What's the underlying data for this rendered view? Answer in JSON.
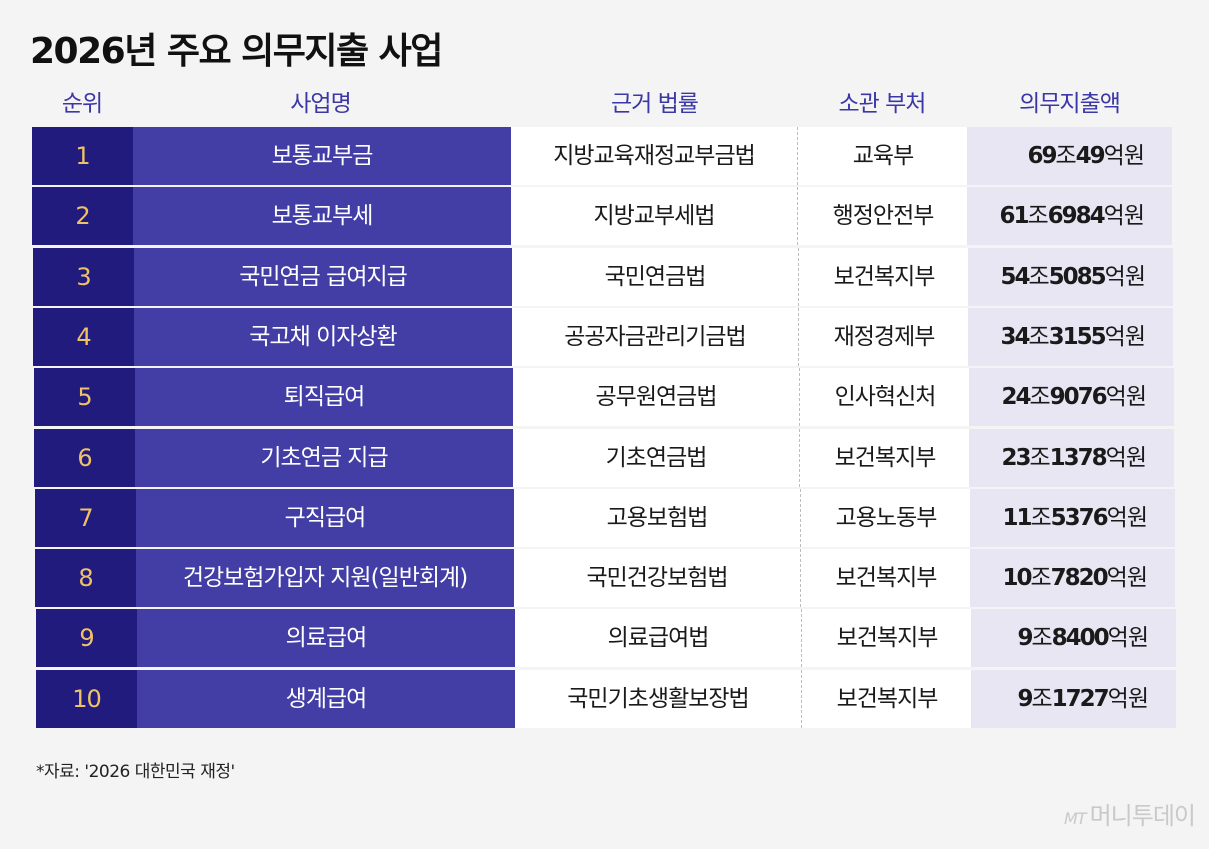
{
  "title": "2026년 주요 의무지출 사업",
  "headers": {
    "rank": "순위",
    "name": "사업명",
    "law": "근거 법률",
    "dept": "소관 부처",
    "amount": "의무지출액"
  },
  "colors": {
    "rank_bg": "#201b7c",
    "name_bg": "#433ea6",
    "rank_text": "#f0c267",
    "header_text": "#3b37a6",
    "amount_bg": "#e8e6f2"
  },
  "chart_data": {
    "type": "table",
    "title": "2026년 주요 의무지출 사업",
    "columns": [
      "순위",
      "사업명",
      "근거 법률",
      "소관 부처",
      "의무지출액"
    ],
    "rows": [
      {
        "rank": "1",
        "name": "보통교부금",
        "law": "지방교육재정교부금법",
        "dept": "교육부",
        "amount": "69조49억원",
        "amount_num": "69",
        "amount_jo": "조",
        "amount_num2": "49",
        "amount_unit": "억원"
      },
      {
        "rank": "2",
        "name": "보통교부세",
        "law": "지방교부세법",
        "dept": "행정안전부",
        "amount": "61조6984억원",
        "amount_num": "61",
        "amount_jo": "조",
        "amount_num2": "6984",
        "amount_unit": "억원"
      },
      {
        "rank": "3",
        "name": "국민연금 급여지급",
        "law": "국민연금법",
        "dept": "보건복지부",
        "amount": "54조5085억원",
        "amount_num": "54",
        "amount_jo": "조",
        "amount_num2": "5085",
        "amount_unit": "억원"
      },
      {
        "rank": "4",
        "name": "국고채 이자상환",
        "law": "공공자금관리기금법",
        "dept": "재정경제부",
        "amount": "34조3155억원",
        "amount_num": "34",
        "amount_jo": "조",
        "amount_num2": "3155",
        "amount_unit": "억원"
      },
      {
        "rank": "5",
        "name": "퇴직급여",
        "law": "공무원연금법",
        "dept": "인사혁신처",
        "amount": "24조9076억원",
        "amount_num": "24",
        "amount_jo": "조",
        "amount_num2": "9076",
        "amount_unit": "억원"
      },
      {
        "rank": "6",
        "name": "기초연금 지급",
        "law": "기초연금법",
        "dept": "보건복지부",
        "amount": "23조1378억원",
        "amount_num": "23",
        "amount_jo": "조",
        "amount_num2": "1378",
        "amount_unit": "억원"
      },
      {
        "rank": "7",
        "name": "구직급여",
        "law": "고용보험법",
        "dept": "고용노동부",
        "amount": "11조5376억원",
        "amount_num": "11",
        "amount_jo": "조",
        "amount_num2": "5376",
        "amount_unit": "억원"
      },
      {
        "rank": "8",
        "name": "건강보험가입자 지원(일반회계)",
        "law": "국민건강보험법",
        "dept": "보건복지부",
        "amount": "10조7820억원",
        "amount_num": "10",
        "amount_jo": "조",
        "amount_num2": "7820",
        "amount_unit": "억원"
      },
      {
        "rank": "9",
        "name": "의료급여",
        "law": "의료급여법",
        "dept": "보건복지부",
        "amount": "9조8400억원",
        "amount_num": "9",
        "amount_jo": "조",
        "amount_num2": "8400",
        "amount_unit": "억원"
      },
      {
        "rank": "10",
        "name": "생계급여",
        "law": "국민기초생활보장법",
        "dept": "보건복지부",
        "amount": "9조1727억원",
        "amount_num": "9",
        "amount_jo": "조",
        "amount_num2": "1727",
        "amount_unit": "억원"
      }
    ]
  },
  "source": "*자료: '2026 대한민국 재정'",
  "logo": {
    "mark": "MT",
    "text": "머니투데이"
  }
}
